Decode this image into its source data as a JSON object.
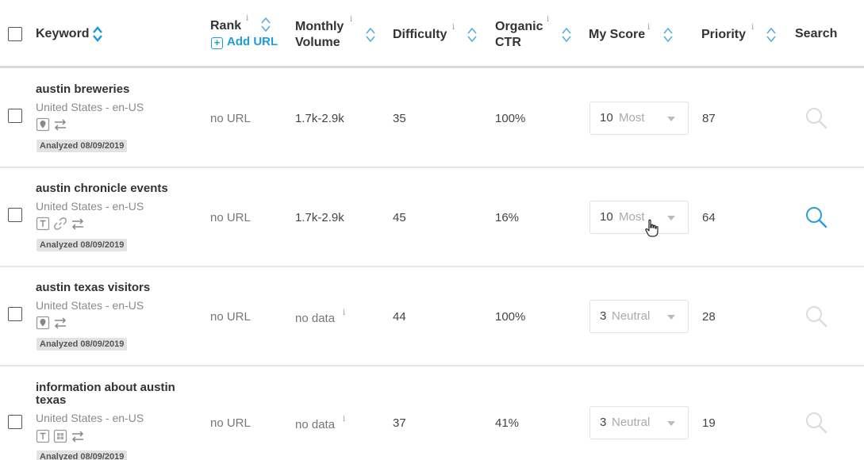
{
  "header": {
    "keyword": "Keyword",
    "rank": "Rank",
    "add_url": "Add URL",
    "monthly_volume_line1": "Monthly",
    "monthly_volume_line2": "Volume",
    "difficulty": "Difficulty",
    "organic_line1": "Organic",
    "organic_line2": "CTR",
    "my_score": "My Score",
    "priority": "Priority",
    "search": "Search",
    "info_glyph": "i"
  },
  "rows": [
    {
      "keyword": "austin breweries",
      "location": "United States - en-US",
      "analyzed": "Analyzed 08/09/2019",
      "rank": "no URL",
      "volume": "1.7k-2.9k",
      "volume_info": "",
      "difficulty": "35",
      "ctr": "100%",
      "score_num": "10",
      "score_label": "Most",
      "priority": "87",
      "features": [
        "map-pack-icon",
        "swap-icon"
      ],
      "search_active": false
    },
    {
      "keyword": "austin chronicle events",
      "location": "United States - en-US",
      "analyzed": "Analyzed 08/09/2019",
      "rank": "no URL",
      "volume": "1.7k-2.9k",
      "volume_info": "",
      "difficulty": "45",
      "ctr": "16%",
      "score_num": "10",
      "score_label": "Most",
      "priority": "64",
      "features": [
        "text-snippet-icon",
        "link-icon",
        "swap-icon"
      ],
      "search_active": true
    },
    {
      "keyword": "austin texas visitors",
      "location": "United States - en-US",
      "analyzed": "Analyzed 08/09/2019",
      "rank": "no URL",
      "volume": "no data",
      "volume_info": "i",
      "difficulty": "44",
      "ctr": "100%",
      "score_num": "3",
      "score_label": "Neutral",
      "priority": "28",
      "features": [
        "map-pack-icon",
        "swap-icon"
      ],
      "search_active": false
    },
    {
      "keyword": "information about austin texas",
      "location": "United States - en-US",
      "analyzed": "Analyzed 08/09/2019",
      "rank": "no URL",
      "volume": "no data",
      "volume_info": "i",
      "difficulty": "37",
      "ctr": "41%",
      "score_num": "3",
      "score_label": "Neutral",
      "priority": "19",
      "features": [
        "text-snippet-icon",
        "image-pack-icon",
        "swap-icon"
      ],
      "search_active": false
    }
  ],
  "colors": {
    "accent": "#1a9dd9",
    "sort_icon": "#5aaedc",
    "badge_bg": "#e2e2e2",
    "muted_text": "#8a8a8a"
  }
}
